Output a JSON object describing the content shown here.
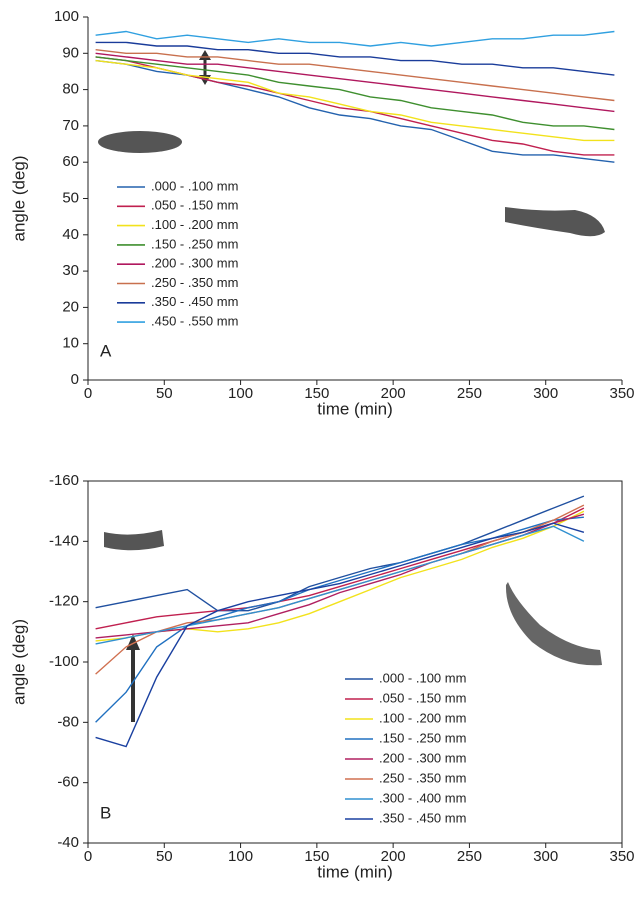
{
  "chart_data": [
    {
      "type": "line",
      "panel": "A",
      "xlabel": "time (min)",
      "ylabel": "angle (deg)",
      "frame": false,
      "xlim": [
        0,
        350
      ],
      "ylim": [
        0,
        100
      ],
      "xticks": [
        0,
        50,
        100,
        150,
        200,
        250,
        300,
        350
      ],
      "yticks": [
        0,
        10,
        20,
        30,
        40,
        50,
        60,
        70,
        80,
        90,
        100
      ],
      "x": [
        5,
        25,
        45,
        65,
        85,
        105,
        125,
        145,
        165,
        185,
        205,
        225,
        245,
        265,
        285,
        305,
        325,
        345
      ],
      "series": [
        {
          "name": ".000 - .100 mm",
          "color": "#2462ae",
          "values": [
            88,
            87,
            85,
            84,
            82,
            80,
            78,
            75,
            73,
            72,
            70,
            69,
            66,
            63,
            62,
            62,
            61,
            60
          ]
        },
        {
          "name": ".050 - .150 mm",
          "color": "#c0204f",
          "values": [
            89,
            88,
            86,
            84,
            82,
            81,
            79,
            77,
            75,
            74,
            72,
            70,
            68,
            66,
            65,
            63,
            62,
            62
          ]
        },
        {
          "name": ".100 - .200 mm",
          "color": "#f2e21c",
          "values": [
            88,
            87,
            86,
            84,
            83,
            82,
            79,
            78,
            76,
            74,
            73,
            71,
            70,
            69,
            68,
            67,
            66,
            66
          ]
        },
        {
          "name": ".150 - .250 mm",
          "color": "#3f8f2f",
          "values": [
            89,
            88,
            87,
            86,
            85,
            84,
            82,
            81,
            80,
            78,
            77,
            75,
            74,
            73,
            71,
            70,
            70,
            69
          ]
        },
        {
          "name": ".200 - .300 mm",
          "color": "#b0185e",
          "values": [
            90,
            89,
            88,
            87,
            87,
            86,
            85,
            84,
            83,
            82,
            81,
            80,
            79,
            78,
            77,
            76,
            75,
            74
          ]
        },
        {
          "name": ".250 - .350 mm",
          "color": "#c8704e",
          "values": [
            91,
            90,
            90,
            89,
            89,
            88,
            87,
            87,
            86,
            85,
            84,
            83,
            82,
            81,
            80,
            79,
            78,
            77
          ]
        },
        {
          "name": ".350 - .450 mm",
          "color": "#1a3c9a",
          "values": [
            93,
            93,
            92,
            92,
            91,
            91,
            90,
            90,
            89,
            89,
            88,
            88,
            87,
            87,
            86,
            86,
            85,
            84
          ]
        },
        {
          "name": ".450 - .550 mm",
          "color": "#30a0e0",
          "values": [
            95,
            96,
            94,
            95,
            94,
            93,
            94,
            93,
            93,
            92,
            93,
            92,
            93,
            94,
            94,
            95,
            95,
            96
          ]
        }
      ]
    },
    {
      "type": "line",
      "panel": "B",
      "xlabel": "time (min)",
      "ylabel": "angle (deg)",
      "frame": true,
      "xlim": [
        0,
        350
      ],
      "ylim": [
        -40,
        -160
      ],
      "xticks": [
        0,
        50,
        100,
        150,
        200,
        250,
        300,
        350
      ],
      "yticks": [
        -160,
        -140,
        -120,
        -100,
        -80,
        -60,
        -40
      ],
      "x": [
        5,
        25,
        45,
        65,
        85,
        105,
        125,
        145,
        165,
        185,
        205,
        225,
        245,
        265,
        285,
        305,
        325
      ],
      "series": [
        {
          "name": ".000 - .100 mm",
          "color": "#2050a0",
          "values": [
            -118,
            -120,
            -122,
            -124,
            -117,
            -117,
            -120,
            -125,
            -128,
            -131,
            -133,
            -136,
            -139,
            -143,
            -147,
            -151,
            -155
          ]
        },
        {
          "name": ".050 - .150 mm",
          "color": "#c0204f",
          "values": [
            -111,
            -113,
            -115,
            -116,
            -117,
            -118,
            -120,
            -122,
            -125,
            -128,
            -131,
            -134,
            -137,
            -140,
            -143,
            -146,
            -151
          ]
        },
        {
          "name": ".100 - .200 mm",
          "color": "#f2e21c",
          "values": [
            -107,
            -108,
            -110,
            -111,
            -110,
            -111,
            -113,
            -116,
            -120,
            -124,
            -128,
            -131,
            -134,
            -138,
            -141,
            -145,
            -150
          ]
        },
        {
          "name": ".150 - .250 mm",
          "color": "#2070c0",
          "values": [
            -80,
            -90,
            -105,
            -112,
            -115,
            -118,
            -120,
            -124,
            -127,
            -130,
            -133,
            -136,
            -139,
            -141,
            -144,
            -147,
            -148
          ]
        },
        {
          "name": ".200 - .300 mm",
          "color": "#b02060",
          "values": [
            -108,
            -109,
            -110,
            -111,
            -112,
            -113,
            -116,
            -119,
            -123,
            -126,
            -129,
            -133,
            -136,
            -139,
            -142,
            -146,
            -149
          ]
        },
        {
          "name": ".250 - .350 mm",
          "color": "#d07050",
          "values": [
            -96,
            -105,
            -110,
            -113,
            -114,
            -116,
            -118,
            -121,
            -124,
            -127,
            -130,
            -133,
            -136,
            -140,
            -143,
            -147,
            -152
          ]
        },
        {
          "name": ".300 - .400 mm",
          "color": "#3090d0",
          "values": [
            -106,
            -108,
            -110,
            -112,
            -114,
            -116,
            -118,
            -121,
            -124,
            -127,
            -130,
            -133,
            -136,
            -139,
            -142,
            -145,
            -140
          ]
        },
        {
          "name": ".350 - .450 mm",
          "color": "#1a40a0",
          "values": [
            -75,
            -72,
            -95,
            -112,
            -117,
            -120,
            -122,
            -124,
            -126,
            -129,
            -132,
            -135,
            -138,
            -141,
            -143,
            -146,
            -143
          ]
        }
      ]
    }
  ]
}
